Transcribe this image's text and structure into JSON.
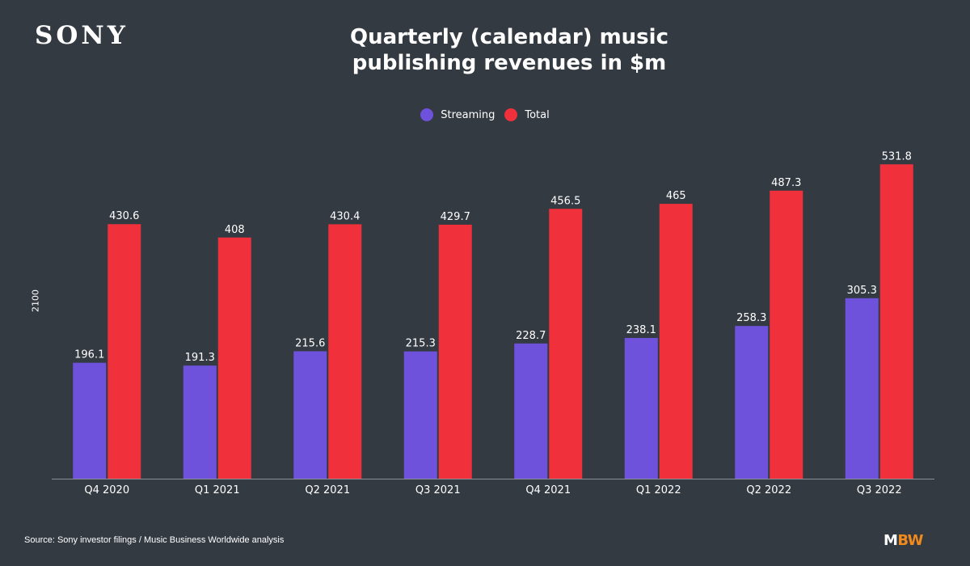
{
  "brand": {
    "logo_text": "SONY"
  },
  "colors": {
    "background": "#343a42",
    "streaming": "#6e52dc",
    "total": "#f0303a",
    "axis": "#8a9098"
  },
  "chart_data": {
    "type": "bar",
    "title": "Quarterly (calendar) music\npublishing revenues in $m",
    "ylabel": "2100",
    "xlabel": "",
    "ylim": [
      0,
      600
    ],
    "legend_position": "top-center",
    "categories": [
      "Q4 2020",
      "Q1 2021",
      "Q2 2021",
      "Q3 2021",
      "Q4 2021",
      "Q1 2022",
      "Q2 2022",
      "Q3 2022"
    ],
    "series": [
      {
        "name": "Streaming",
        "color": "#6e52dc",
        "values": [
          196.1,
          191.3,
          215.6,
          215.3,
          228.7,
          238.1,
          258.3,
          305.3
        ]
      },
      {
        "name": "Total",
        "color": "#f0303a",
        "values": [
          430.6,
          408,
          430.4,
          429.7,
          456.5,
          465,
          487.3,
          531.8
        ]
      }
    ]
  },
  "footer": {
    "source": "Source: Sony investor filings / Music Business Worldwide analysis",
    "mbw_m": "M",
    "mbw_bw": "BW"
  }
}
